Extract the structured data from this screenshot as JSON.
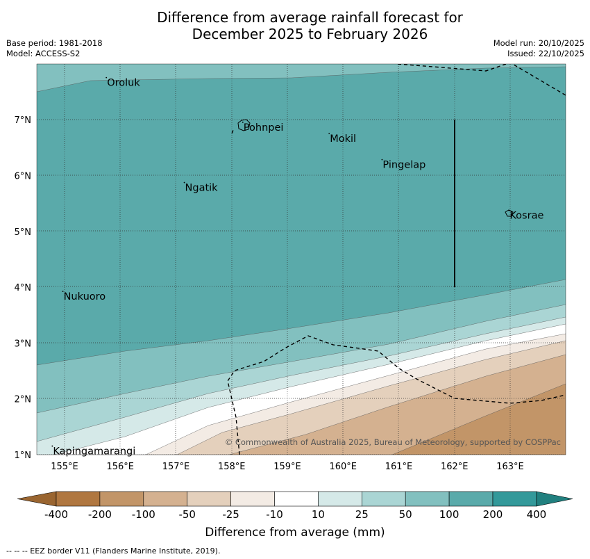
{
  "title": {
    "line1": "Difference from average rainfall forecast for",
    "line2": "December 2025 to February 2026"
  },
  "meta": {
    "base_period": "Base period: 1981-2018",
    "model": "Model: ACCESS-S2",
    "model_run": "Model run: 20/10/2025",
    "issued": "Issued: 22/10/2025"
  },
  "map": {
    "x_ticks": [
      "155°E",
      "156°E",
      "157°E",
      "158°E",
      "159°E",
      "160°E",
      "161°E",
      "162°E",
      "163°E"
    ],
    "y_ticks": [
      "1°N",
      "2°N",
      "3°N",
      "4°N",
      "5°N",
      "6°N",
      "7°N"
    ],
    "places": [
      {
        "name": "Oroluk",
        "lon": 155.75,
        "lat": 7.68
      },
      {
        "name": "Pohnpei",
        "lon": 158.2,
        "lat": 6.88
      },
      {
        "name": "Mokil",
        "lon": 159.75,
        "lat": 6.68
      },
      {
        "name": "Pingelap",
        "lon": 160.7,
        "lat": 6.21
      },
      {
        "name": "Ngatik",
        "lon": 157.15,
        "lat": 5.8
      },
      {
        "name": "Kosrae",
        "lon": 162.98,
        "lat": 5.3
      },
      {
        "name": "Nukuoro",
        "lon": 154.97,
        "lat": 3.85
      },
      {
        "name": "Kapingamarangi",
        "lon": 154.78,
        "lat": 1.08
      }
    ],
    "copyright": "© Commonwealth of Australia 2025, Bureau of Meteorology, supported by COSPPac"
  },
  "legend": {
    "labels": [
      "-400",
      "-200",
      "-100",
      "-50",
      "-25",
      "-10",
      "10",
      "25",
      "50",
      "100",
      "200",
      "400"
    ],
    "colors": [
      "#b07740",
      "#c29568",
      "#d4b190",
      "#e4d0bc",
      "#f3ebe4",
      "#ffffff",
      "#d5e9e8",
      "#aad5d4",
      "#82c0bf",
      "#5aaaaa",
      "#33999a"
    ],
    "low_extend_color": "#9a6530",
    "high_extend_color": "#21807f",
    "title": "Difference from average (mm)"
  },
  "footnote": "--  --  -- EEZ border V11 (Flanders Marine Institute, 2019)."
}
